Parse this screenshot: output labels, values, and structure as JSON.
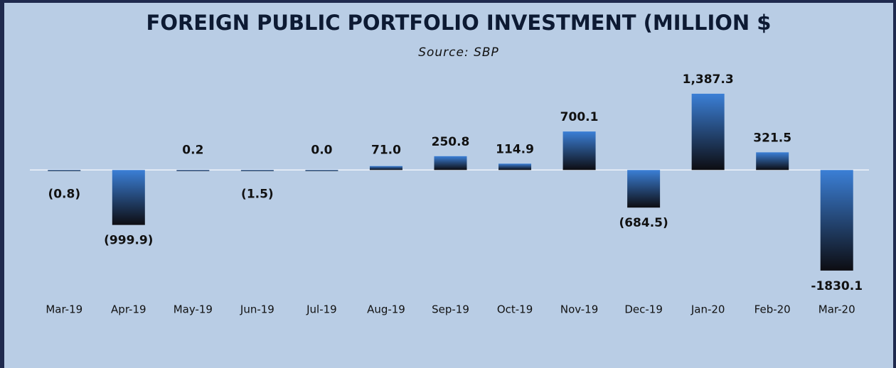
{
  "chart_data": {
    "type": "bar",
    "title": "FOREIGN PUBLIC PORTFOLIO INVESTMENT (MILLION $",
    "subtitle": "Source: SBP",
    "categories": [
      "Mar-19",
      "Apr-19",
      "May-19",
      "Jun-19",
      "Jul-19",
      "Aug-19",
      "Sep-19",
      "Oct-19",
      "Nov-19",
      "Dec-19",
      "Jan-20",
      "Feb-20",
      "Mar-20"
    ],
    "values": [
      -0.8,
      -999.9,
      0.2,
      -1.5,
      0.0,
      71.0,
      250.8,
      114.9,
      700.1,
      -684.5,
      1387.3,
      321.5,
      -1830.1
    ],
    "value_labels": [
      "(0.8)",
      "(999.9)",
      "0.2",
      "(1.5)",
      "0.0",
      "71.0",
      "250.8",
      "114.9",
      "700.1",
      "(684.5)",
      "1,387.3",
      "321.5",
      "-1830.1"
    ],
    "color": "#3b7fd6",
    "ylim": [
      -2000,
      1800
    ]
  }
}
